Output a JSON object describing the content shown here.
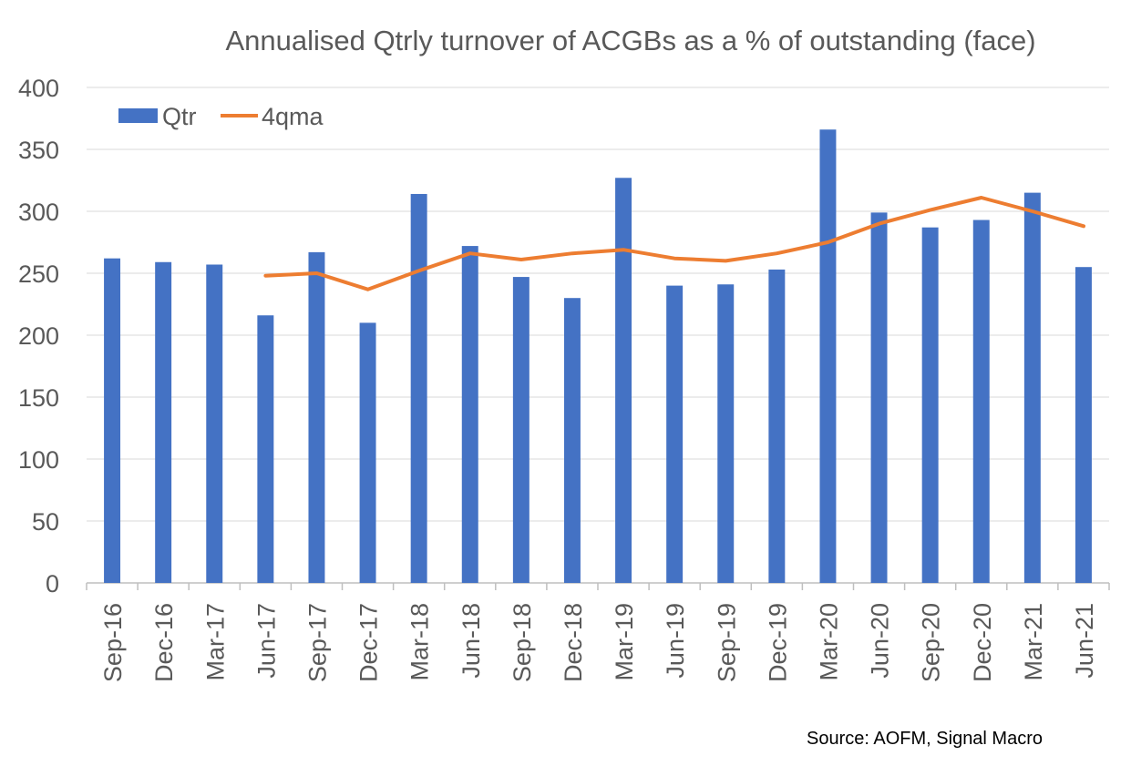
{
  "chart_data": {
    "type": "bar",
    "title": "Annualised Qtrly turnover of ACGBs as a % of outstanding (face)",
    "xlabel": "",
    "ylabel": "",
    "ylim": [
      0,
      400
    ],
    "yticks": [
      "0",
      "50",
      "100",
      "150",
      "200",
      "250",
      "300",
      "350",
      "400"
    ],
    "grid": true,
    "legend_position": "top-left",
    "categories": [
      "Sep-16",
      "Dec-16",
      "Mar-17",
      "Jun-17",
      "Sep-17",
      "Dec-17",
      "Mar-18",
      "Jun-18",
      "Sep-18",
      "Dec-18",
      "Mar-19",
      "Jun-19",
      "Sep-19",
      "Dec-19",
      "Mar-20",
      "Jun-20",
      "Sep-20",
      "Dec-20",
      "Mar-21",
      "Jun-21"
    ],
    "series": [
      {
        "name": "Qtr",
        "type": "bar",
        "color": "#4472C4",
        "values": [
          262,
          259,
          257,
          216,
          267,
          210,
          314,
          272,
          247,
          230,
          327,
          240,
          241,
          253,
          366,
          299,
          287,
          293,
          315,
          255
        ]
      },
      {
        "name": "4qma",
        "type": "line",
        "color": "#ED7D31",
        "values": [
          null,
          null,
          null,
          248,
          250,
          237,
          252,
          266,
          261,
          266,
          269,
          262,
          260,
          266,
          275,
          290,
          301,
          311,
          300,
          288
        ]
      }
    ]
  },
  "source_note": "Source: AOFM, Signal Macro",
  "colors": {
    "grid": "#D9D9D9",
    "axis": "#BFBFBF",
    "text": "#595959"
  }
}
